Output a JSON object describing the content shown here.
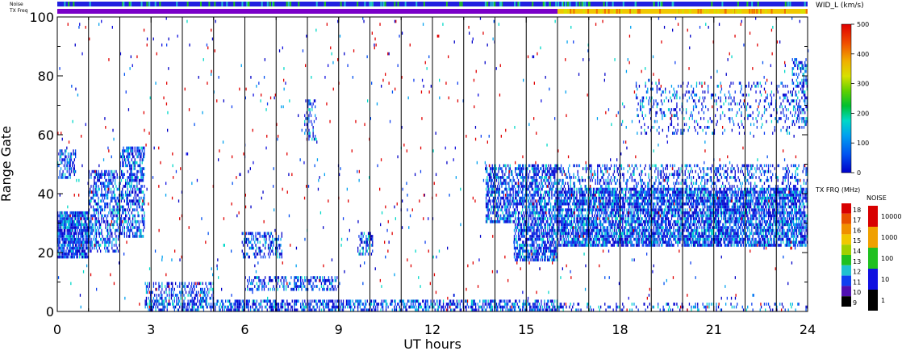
{
  "chart_data": {
    "type": "heatmap",
    "xlabel": "UT hours",
    "ylabel": "Range Gate",
    "xlim": [
      0,
      24
    ],
    "ylim": [
      0,
      100
    ],
    "x_ticks": [
      0,
      3,
      6,
      9,
      12,
      15,
      18,
      21,
      24
    ],
    "y_ticks": [
      0,
      20,
      40,
      60,
      80,
      100
    ],
    "scan_boundaries_hours": [
      1,
      2,
      3,
      4,
      5,
      6,
      7,
      8,
      9,
      10,
      11,
      12,
      13,
      14,
      15,
      16,
      17,
      18,
      19,
      20,
      21,
      22,
      23
    ],
    "top_strips": {
      "noise_label": "Noise",
      "txfreq_label": "TX Freq",
      "noise_color": "#2020e0",
      "txfreq_segments": [
        {
          "from_hour": 0,
          "to_hour": 16,
          "color": "#7a00c8"
        },
        {
          "from_hour": 16,
          "to_hour": 24,
          "color": "#f0c800"
        }
      ]
    },
    "main_colorbar": {
      "title": "WID_L (km/s)",
      "min": 0,
      "max": 500,
      "tick_labels": [
        "500",
        "400",
        "300",
        "200",
        "100",
        "0"
      ],
      "tick_values": [
        500,
        400,
        300,
        200,
        100,
        0
      ]
    },
    "txfrq_colorbar": {
      "title": "TX FRQ (MHz)",
      "tick_labels": [
        "18",
        "17",
        "16",
        "15",
        "14",
        "13",
        "12",
        "11",
        "10",
        "9"
      ],
      "colors": [
        "#d80000",
        "#e85000",
        "#f09000",
        "#f0c800",
        "#a0d000",
        "#20c020",
        "#20c0d0",
        "#1040f0",
        "#5010b0",
        "#000000"
      ]
    },
    "noise_colorbar": {
      "title": "NOISE",
      "tick_labels": [
        "10000",
        "1000",
        "100",
        "10",
        "1"
      ],
      "colors": [
        "#d80000",
        "#f0a000",
        "#20c020",
        "#1010e0",
        "#000000"
      ]
    },
    "regions": [
      {
        "x0": 0.0,
        "x1": 1.0,
        "y0": 18,
        "y1": 34,
        "density": 0.85
      },
      {
        "x0": 1.0,
        "x1": 2.0,
        "y0": 20,
        "y1": 48,
        "density": 0.5
      },
      {
        "x0": 2.0,
        "x1": 2.8,
        "y0": 25,
        "y1": 56,
        "density": 0.55
      },
      {
        "x0": 0.0,
        "x1": 0.6,
        "y0": 45,
        "y1": 55,
        "density": 0.4
      },
      {
        "x0": 2.8,
        "x1": 5.0,
        "y0": 4,
        "y1": 10,
        "density": 0.35
      },
      {
        "x0": 5.9,
        "x1": 7.2,
        "y0": 18,
        "y1": 27,
        "density": 0.45
      },
      {
        "x0": 6.0,
        "x1": 9.0,
        "y0": 7,
        "y1": 12,
        "density": 0.4
      },
      {
        "x0": 7.9,
        "x1": 8.3,
        "y0": 58,
        "y1": 72,
        "density": 0.35
      },
      {
        "x0": 9.6,
        "x1": 10.1,
        "y0": 19,
        "y1": 27,
        "density": 0.45
      },
      {
        "x0": 2.8,
        "x1": 16.0,
        "y0": 0,
        "y1": 4,
        "density": 0.55
      },
      {
        "x0": 13.7,
        "x1": 16.0,
        "y0": 30,
        "y1": 50,
        "density": 0.6
      },
      {
        "x0": 14.6,
        "x1": 16.0,
        "y0": 17,
        "y1": 30,
        "density": 0.7
      },
      {
        "x0": 16.0,
        "x1": 24.0,
        "y0": 22,
        "y1": 42,
        "density": 0.75
      },
      {
        "x0": 16.0,
        "x1": 24.0,
        "y0": 42,
        "y1": 50,
        "density": 0.3
      },
      {
        "x0": 16.0,
        "x1": 24.0,
        "y0": 0,
        "y1": 3,
        "density": 0.2
      },
      {
        "x0": 18.5,
        "x1": 23.5,
        "y0": 60,
        "y1": 78,
        "density": 0.15
      },
      {
        "x0": 23.5,
        "x1": 24.0,
        "y0": 62,
        "y1": 86,
        "density": 0.35
      }
    ]
  }
}
